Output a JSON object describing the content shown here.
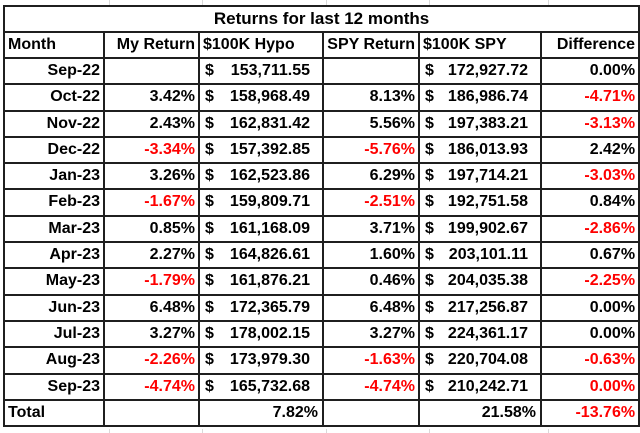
{
  "sheet": {
    "title": "Returns for last 12 months",
    "columns": [
      {
        "label": "Month"
      },
      {
        "label": "My Return"
      },
      {
        "label": "$100K Hypo"
      },
      {
        "label": "SPY Return"
      },
      {
        "label": "$100K SPY"
      },
      {
        "label": "Difference"
      }
    ],
    "colors": {
      "text": "#000000",
      "negative": "#fe0000",
      "border": "#1f1f1f",
      "background": "#ffffff"
    },
    "rows": [
      {
        "cells": [
          {
            "text": "Sep-22"
          },
          {
            "text": ""
          },
          {
            "text": "$153,711.55"
          },
          {
            "text": ""
          },
          {
            "text": "$172,927.72"
          },
          {
            "text": "0.00%"
          }
        ]
      },
      {
        "cells": [
          {
            "text": "Oct-22"
          },
          {
            "text": "3.42%"
          },
          {
            "text": "$158,968.49"
          },
          {
            "text": "8.13%"
          },
          {
            "text": "$186,986.74"
          },
          {
            "text": "-4.71%",
            "red": true
          }
        ]
      },
      {
        "cells": [
          {
            "text": "Nov-22"
          },
          {
            "text": "2.43%"
          },
          {
            "text": "$162,831.42"
          },
          {
            "text": "5.56%"
          },
          {
            "text": "$197,383.21"
          },
          {
            "text": "-3.13%",
            "red": true
          }
        ]
      },
      {
        "cells": [
          {
            "text": "Dec-22"
          },
          {
            "text": "-3.34%",
            "red": true
          },
          {
            "text": "$157,392.85"
          },
          {
            "text": "-5.76%",
            "red": true
          },
          {
            "text": "$186,013.93"
          },
          {
            "text": "2.42%"
          }
        ]
      },
      {
        "cells": [
          {
            "text": "Jan-23"
          },
          {
            "text": "3.26%"
          },
          {
            "text": "$162,523.86"
          },
          {
            "text": "6.29%"
          },
          {
            "text": "$197,714.21"
          },
          {
            "text": "-3.03%",
            "red": true
          }
        ]
      },
      {
        "cells": [
          {
            "text": "Feb-23"
          },
          {
            "text": "-1.67%",
            "red": true
          },
          {
            "text": "$159,809.71"
          },
          {
            "text": "-2.51%",
            "red": true
          },
          {
            "text": "$192,751.58"
          },
          {
            "text": "0.84%"
          }
        ]
      },
      {
        "cells": [
          {
            "text": "Mar-23"
          },
          {
            "text": "0.85%"
          },
          {
            "text": "$161,168.09"
          },
          {
            "text": "3.71%"
          },
          {
            "text": "$199,902.67"
          },
          {
            "text": "-2.86%",
            "red": true
          }
        ]
      },
      {
        "cells": [
          {
            "text": "Apr-23"
          },
          {
            "text": "2.27%"
          },
          {
            "text": "$164,826.61"
          },
          {
            "text": "1.60%"
          },
          {
            "text": "$203,101.11"
          },
          {
            "text": "0.67%"
          }
        ]
      },
      {
        "cells": [
          {
            "text": "May-23"
          },
          {
            "text": "-1.79%",
            "red": true
          },
          {
            "text": "$161,876.21"
          },
          {
            "text": "0.46%"
          },
          {
            "text": "$204,035.38"
          },
          {
            "text": "-2.25%",
            "red": true
          }
        ]
      },
      {
        "cells": [
          {
            "text": "Jun-23"
          },
          {
            "text": "6.48%"
          },
          {
            "text": "$172,365.79"
          },
          {
            "text": "6.48%"
          },
          {
            "text": "$217,256.87"
          },
          {
            "text": "0.00%"
          }
        ]
      },
      {
        "cells": [
          {
            "text": "Jul-23"
          },
          {
            "text": "3.27%"
          },
          {
            "text": "$178,002.15"
          },
          {
            "text": "3.27%"
          },
          {
            "text": "$224,361.17"
          },
          {
            "text": "0.00%"
          }
        ]
      },
      {
        "cells": [
          {
            "text": "Aug-23"
          },
          {
            "text": "-2.26%",
            "red": true
          },
          {
            "text": "$173,979.30"
          },
          {
            "text": "-1.63%",
            "red": true
          },
          {
            "text": "$220,704.08"
          },
          {
            "text": "-0.63%",
            "red": true
          }
        ]
      },
      {
        "cells": [
          {
            "text": "Sep-23"
          },
          {
            "text": "-4.74%",
            "red": true
          },
          {
            "text": "$165,732.68"
          },
          {
            "text": "-4.74%",
            "red": true
          },
          {
            "text": "$210,242.71"
          },
          {
            "text": "0.00%",
            "red": true
          }
        ]
      },
      {
        "cells": [
          {
            "text": "Total",
            "align": "left"
          },
          {
            "text": ""
          },
          {
            "text": "7.82%",
            "pad": "4px"
          },
          {
            "text": ""
          },
          {
            "text": "21.58%",
            "pad": "4px"
          },
          {
            "text": "-13.76%",
            "red": true
          }
        ]
      }
    ]
  }
}
